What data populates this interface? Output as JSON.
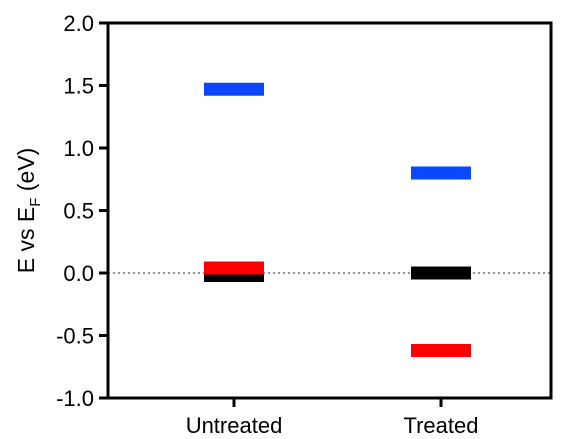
{
  "chart_data": {
    "type": "scatter",
    "marker": "horizontal-bar",
    "ylabel": {
      "prefix": "E vs E",
      "subscript": "F",
      "suffix": " (eV)"
    },
    "ylim": [
      -1.0,
      2.0
    ],
    "yticks": [
      "-1.0",
      "-0.5",
      "0.0",
      "0.5",
      "1.0",
      "1.5",
      "2.0"
    ],
    "categories": [
      "Untreated",
      "Treated"
    ],
    "reference_line": {
      "y": 0.0,
      "style": "dotted"
    },
    "series": [
      {
        "color": "#0a47ff",
        "values": [
          1.47,
          0.8
        ]
      },
      {
        "color": "#000000",
        "values": [
          -0.02,
          0.0
        ]
      },
      {
        "color": "#ff0000",
        "values": [
          0.04,
          -0.62
        ]
      }
    ],
    "grid": false,
    "legend": "none"
  }
}
